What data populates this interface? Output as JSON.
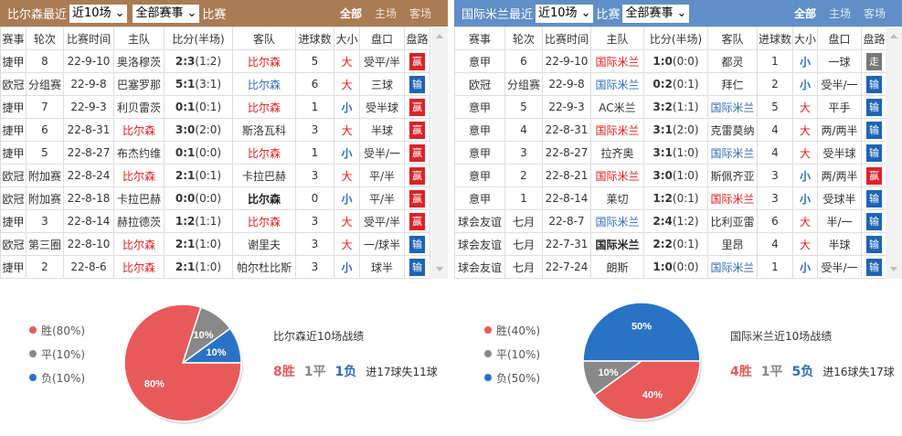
{
  "columns": [
    "赛事",
    "轮次",
    "比赛时间",
    "主队",
    "比分(半场)",
    "客队",
    "进球数",
    "大小",
    "盘口",
    "盘路"
  ],
  "left": {
    "title": "比尔森最近",
    "range_select": "近10场",
    "comp_select": "全部赛事",
    "suffix": "比赛",
    "links": [
      "全部",
      "主场",
      "客场"
    ],
    "rows": [
      {
        "comp": "捷甲",
        "round": "8",
        "date": "22-9-10",
        "home": "奥洛穆茨",
        "home_color": "plain",
        "ft": "2:3",
        "ht": "(1:2)",
        "away": "比尔森",
        "away_color": "red",
        "goals": "5",
        "ou": "大",
        "line": "受平/半",
        "result": "赢"
      },
      {
        "comp": "欧冠",
        "round": "分组赛",
        "date": "22-9-8",
        "home": "巴塞罗那",
        "home_color": "plain",
        "ft": "5:1",
        "ht": "(3:1)",
        "away": "比尔森",
        "away_color": "blue",
        "goals": "6",
        "ou": "大",
        "line": "三球",
        "result": "输"
      },
      {
        "comp": "捷甲",
        "round": "7",
        "date": "22-9-3",
        "home": "利贝雷茨",
        "home_color": "plain",
        "ft": "0:1",
        "ht": "(0:1)",
        "away": "比尔森",
        "away_color": "red",
        "goals": "1",
        "ou": "小",
        "line": "受半球",
        "result": "赢"
      },
      {
        "comp": "捷甲",
        "round": "6",
        "date": "22-8-31",
        "home": "比尔森",
        "home_color": "red",
        "ft": "3:0",
        "ht": "(2:0)",
        "away": "斯洛瓦科",
        "away_color": "plain",
        "goals": "3",
        "ou": "大",
        "line": "半球",
        "result": "赢"
      },
      {
        "comp": "捷甲",
        "round": "5",
        "date": "22-8-27",
        "home": "布杰约维",
        "home_color": "plain",
        "ft": "0:1",
        "ht": "(0:0)",
        "away": "比尔森",
        "away_color": "red",
        "goals": "1",
        "ou": "小",
        "line": "受半/一",
        "result": "赢"
      },
      {
        "comp": "欧冠",
        "round": "附加赛",
        "date": "22-8-24",
        "home": "比尔森",
        "home_color": "red",
        "ft": "2:1",
        "ht": "(0:1)",
        "away": "卡拉巴赫",
        "away_color": "plain",
        "goals": "3",
        "ou": "大",
        "line": "平/半",
        "result": "赢"
      },
      {
        "comp": "欧冠",
        "round": "附加赛",
        "date": "22-8-18",
        "home": "卡拉巴赫",
        "home_color": "plain",
        "ft": "0:0",
        "ht": "(0:0)",
        "away": "比尔森",
        "away_color": "black",
        "goals": "0",
        "ou": "小",
        "line": "平/半",
        "result": "赢"
      },
      {
        "comp": "捷甲",
        "round": "3",
        "date": "22-8-14",
        "home": "赫拉德茨",
        "home_color": "plain",
        "ft": "1:2",
        "ht": "(1:1)",
        "away": "比尔森",
        "away_color": "red",
        "goals": "3",
        "ou": "大",
        "line": "受平/半",
        "result": "赢"
      },
      {
        "comp": "欧冠",
        "round": "第三圈",
        "date": "22-8-10",
        "home": "比尔森",
        "home_color": "red",
        "ft": "2:1",
        "ht": "(1:0)",
        "away": "谢里夫",
        "away_color": "plain",
        "goals": "3",
        "ou": "大",
        "line": "一/球半",
        "result": "输"
      },
      {
        "comp": "捷甲",
        "round": "2",
        "date": "22-8-6",
        "home": "比尔森",
        "home_color": "red",
        "ft": "2:1",
        "ht": "(1:0)",
        "away": "帕尔杜比斯",
        "away_color": "plain",
        "goals": "3",
        "ou": "小",
        "line": "球半",
        "result": "输"
      }
    ],
    "pie": {
      "legend": [
        "胜(80%)",
        "平(10%)",
        "负(10%)"
      ],
      "values": [
        80,
        10,
        10
      ],
      "labels": [
        "80%",
        "10%",
        "10%"
      ]
    },
    "summary": {
      "title": "比尔森近10场战绩",
      "wins": "8胜",
      "draws": "1平",
      "losses": "1负",
      "goals": "进17球失11球"
    }
  },
  "right": {
    "title": "国际米兰最近",
    "range_select": "近10场",
    "suffix": "比赛",
    "comp_select": "全部赛事",
    "links": [
      "全部",
      "主场",
      "客场"
    ],
    "rows": [
      {
        "comp": "意甲",
        "round": "6",
        "date": "22-9-10",
        "home": "国际米兰",
        "home_color": "red",
        "ft": "1:0",
        "ht": "(0:0)",
        "away": "都灵",
        "away_color": "plain",
        "goals": "1",
        "ou": "小",
        "line": "一球",
        "result": "走"
      },
      {
        "comp": "欧冠",
        "round": "分组赛",
        "date": "22-9-8",
        "home": "国际米兰",
        "home_color": "blue",
        "ft": "0:2",
        "ht": "(0:1)",
        "away": "拜仁",
        "away_color": "plain",
        "goals": "2",
        "ou": "小",
        "line": "受半/一",
        "result": "输"
      },
      {
        "comp": "意甲",
        "round": "5",
        "date": "22-9-3",
        "home": "AC米兰",
        "home_color": "plain",
        "ft": "3:2",
        "ht": "(1:1)",
        "away": "国际米兰",
        "away_color": "blue",
        "goals": "5",
        "ou": "大",
        "line": "平手",
        "result": "输"
      },
      {
        "comp": "意甲",
        "round": "4",
        "date": "22-8-31",
        "home": "国际米兰",
        "home_color": "red",
        "ft": "3:1",
        "ht": "(2:0)",
        "away": "克雷莫纳",
        "away_color": "plain",
        "goals": "4",
        "ou": "大",
        "line": "两/两半",
        "result": "输"
      },
      {
        "comp": "意甲",
        "round": "3",
        "date": "22-8-27",
        "home": "拉齐奥",
        "home_color": "plain",
        "ft": "3:1",
        "ht": "(1:0)",
        "away": "国际米兰",
        "away_color": "blue",
        "goals": "4",
        "ou": "大",
        "line": "受半球",
        "result": "输"
      },
      {
        "comp": "意甲",
        "round": "2",
        "date": "22-8-21",
        "home": "国际米兰",
        "home_color": "red",
        "ft": "3:0",
        "ht": "(1:0)",
        "away": "斯佩齐亚",
        "away_color": "plain",
        "goals": "3",
        "ou": "小",
        "line": "两/两半",
        "result": "赢"
      },
      {
        "comp": "意甲",
        "round": "1",
        "date": "22-8-14",
        "home": "莱切",
        "home_color": "plain",
        "ft": "1:2",
        "ht": "(0:1)",
        "away": "国际米兰",
        "away_color": "red",
        "goals": "3",
        "ou": "小",
        "line": "受球半",
        "result": "输"
      },
      {
        "comp": "球会友谊",
        "round": "七月",
        "date": "22-8-7",
        "home": "国际米兰",
        "home_color": "blue",
        "ft": "2:4",
        "ht": "(1:2)",
        "away": "比利亚雷",
        "away_color": "plain",
        "goals": "6",
        "ou": "大",
        "line": "半/一",
        "result": "输"
      },
      {
        "comp": "球会友谊",
        "round": "七月",
        "date": "22-7-31",
        "home": "国际米兰",
        "home_color": "black",
        "ft": "2:2",
        "ht": "(0:1)",
        "away": "里昂",
        "away_color": "plain",
        "goals": "4",
        "ou": "大",
        "line": "半球",
        "result": "输"
      },
      {
        "comp": "球会友谊",
        "round": "七月",
        "date": "22-7-24",
        "home": "朗斯",
        "home_color": "plain",
        "ft": "1:0",
        "ht": "(0:0)",
        "away": "国际米兰",
        "away_color": "blue",
        "goals": "1",
        "ou": "小",
        "line": "受半/一",
        "result": "输"
      }
    ],
    "pie": {
      "legend": [
        "胜(40%)",
        "平(10%)",
        "负(50%)"
      ],
      "values": [
        40,
        10,
        50
      ],
      "labels": [
        "40%",
        "10%",
        "50%"
      ]
    },
    "summary": {
      "title": "国际米兰近10场战绩",
      "wins": "4胜",
      "draws": "1平",
      "losses": "5负",
      "goals": "进16球失17球"
    }
  },
  "colors": {
    "win": "#e85a5a",
    "draw": "#888888",
    "loss": "#2a72c4"
  }
}
